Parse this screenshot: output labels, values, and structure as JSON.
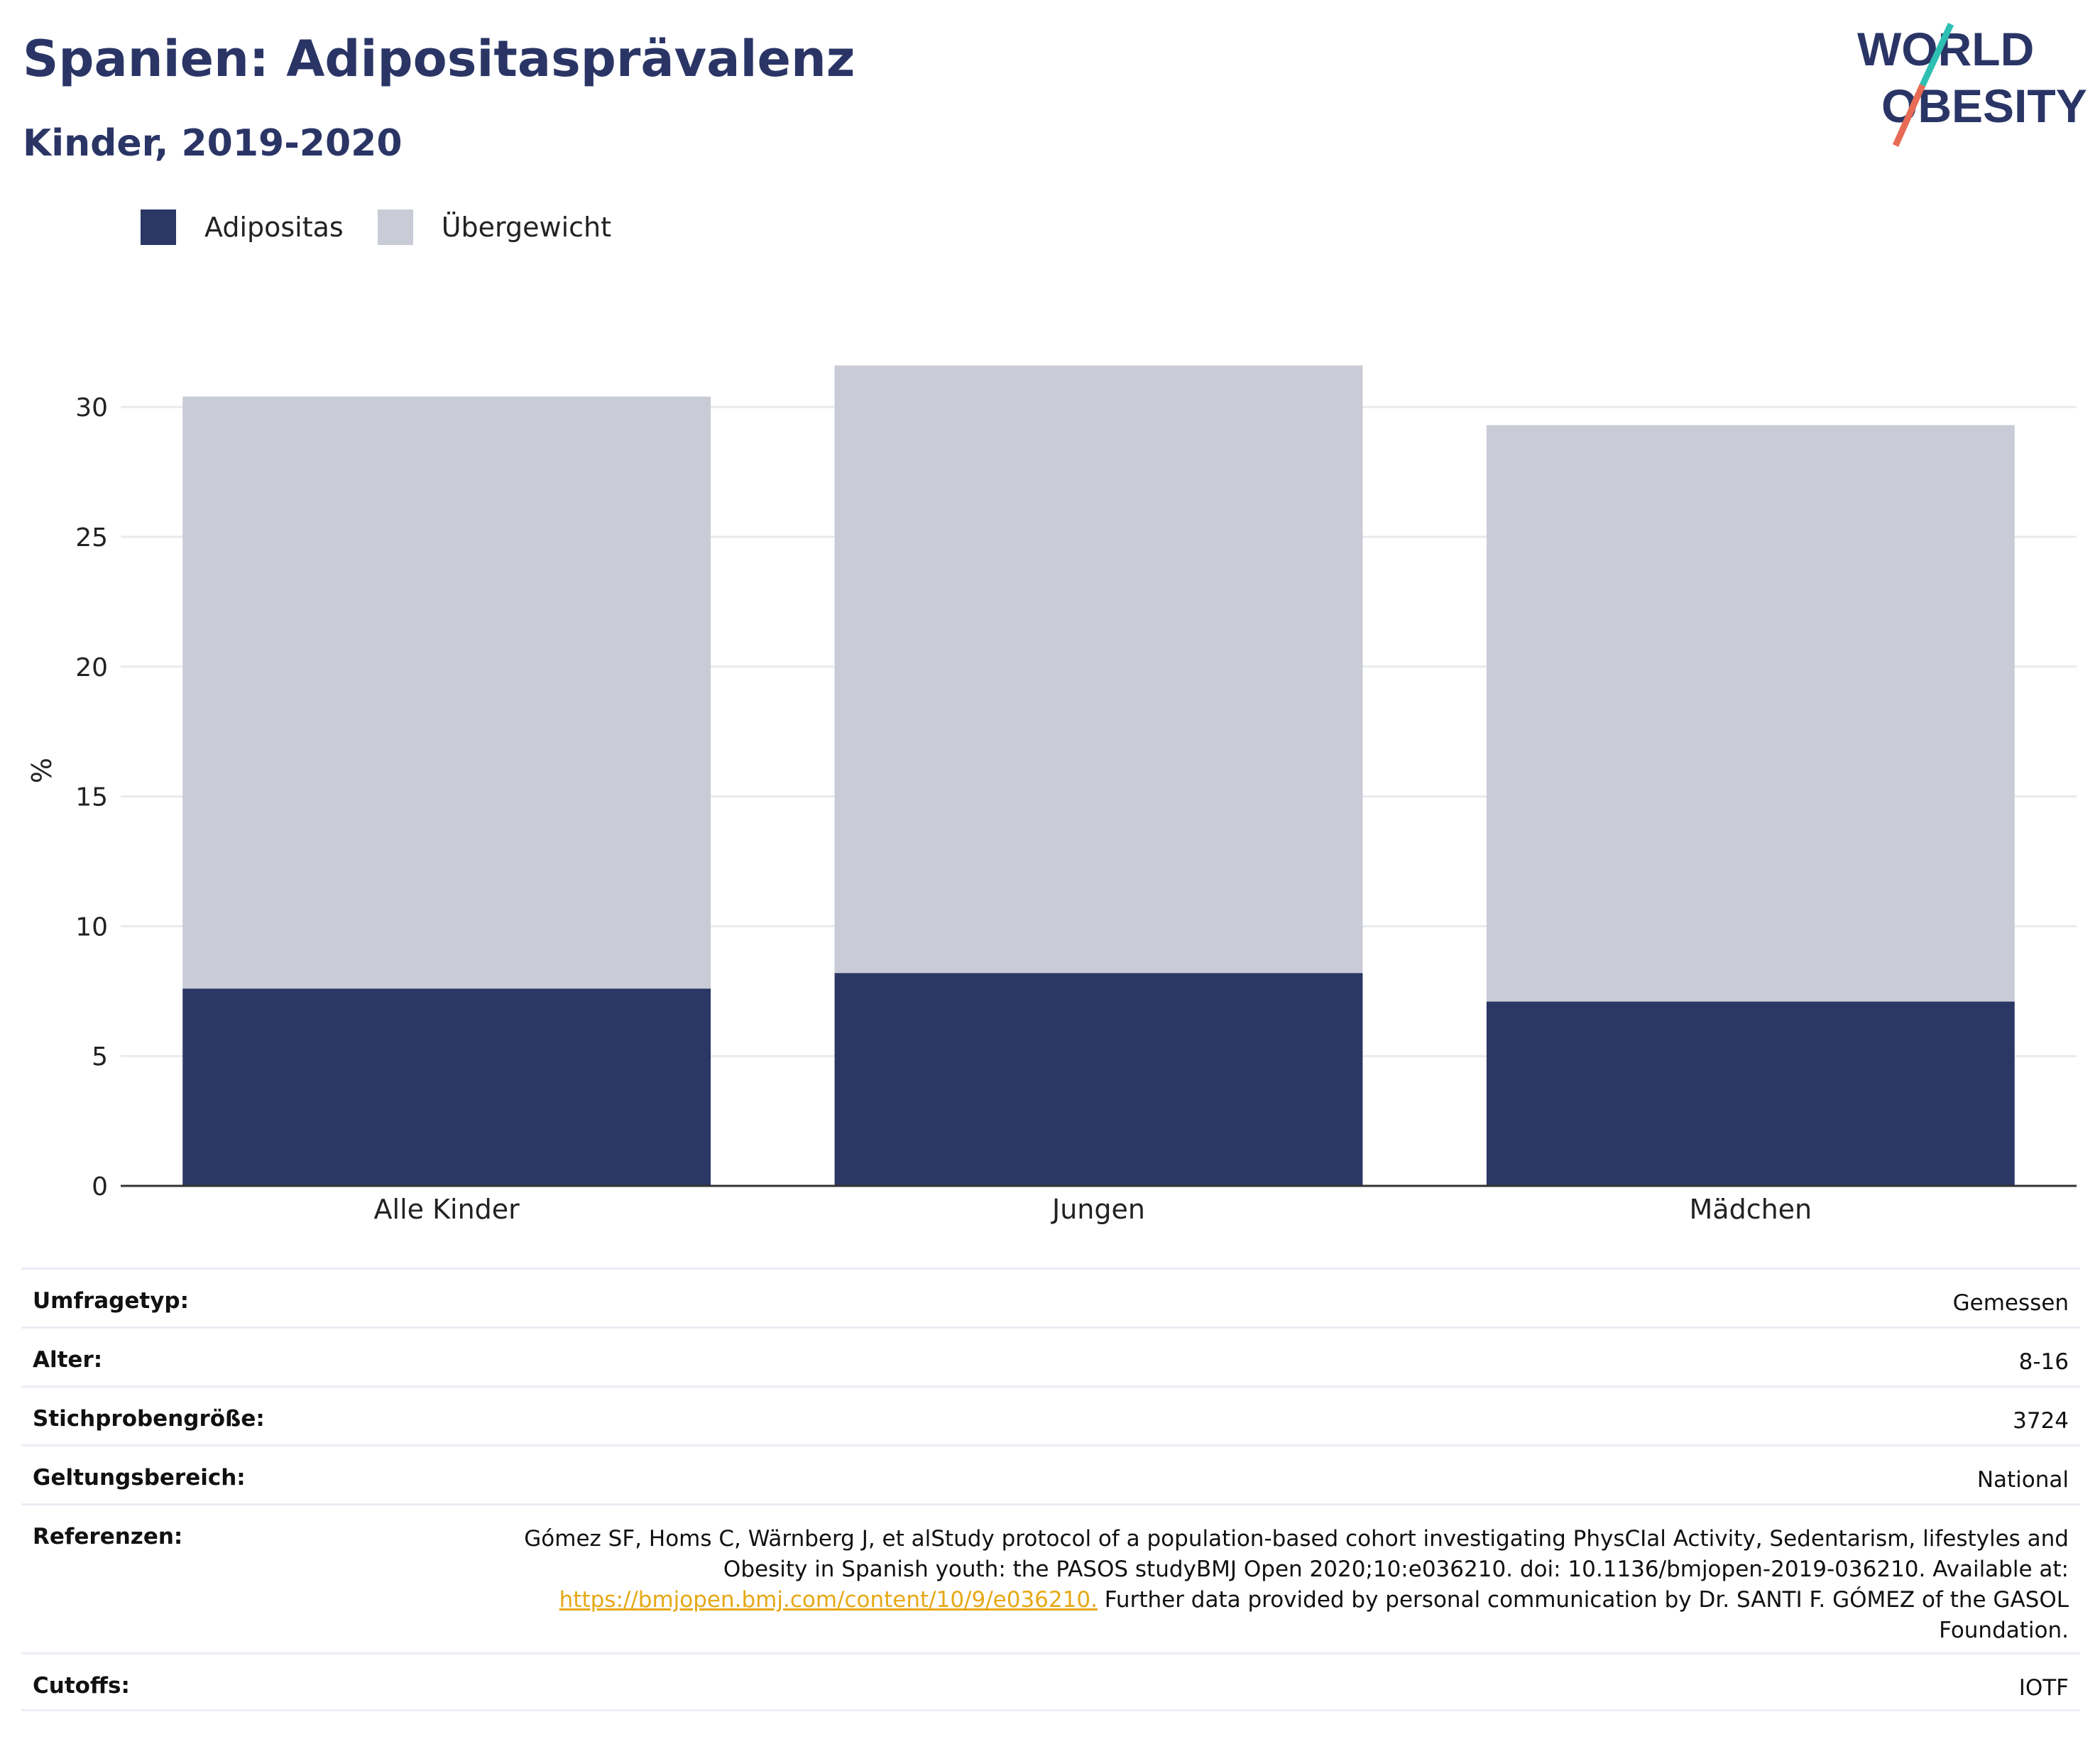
{
  "header": {
    "title": "Spanien: Adipositasprävalenz",
    "subtitle": "Kinder, 2019-2020"
  },
  "logo": {
    "line1": "WORLD",
    "line2": "OBESITY"
  },
  "colors": {
    "adipositas": "#2b3764",
    "uebergewicht": "#c9cbd7",
    "title": "#2a3566",
    "link": "#e6a817",
    "logo_teal": "#2ebfb3",
    "logo_coral": "#e86b56"
  },
  "legend": [
    {
      "label": "Adipositas",
      "color": "#2b3764"
    },
    {
      "label": "Übergewicht",
      "color": "#c9cbd7"
    }
  ],
  "chart_data": {
    "type": "bar",
    "stacked": true,
    "categories": [
      "Alle Kinder",
      "Jungen",
      "Mädchen"
    ],
    "series": [
      {
        "name": "Adipositas",
        "values": [
          7.6,
          8.2,
          7.1
        ]
      },
      {
        "name": "Übergewicht",
        "values": [
          22.8,
          23.4,
          22.2
        ]
      }
    ],
    "ylabel": "%",
    "yticks": [
      "0",
      "5",
      "10",
      "15",
      "20",
      "25",
      "30"
    ],
    "ylim": [
      0,
      32
    ],
    "grid": true
  },
  "info": [
    {
      "key": "Umfragetyp:",
      "value": "Gemessen"
    },
    {
      "key": "Alter:",
      "value": "8-16"
    },
    {
      "key": "Stichprobengröße:",
      "value": "3724"
    },
    {
      "key": "Geltungsbereich:",
      "value": "National"
    },
    {
      "key": "Referenzen:",
      "value": "Gómez SF, Homs C, Wärnberg J, et alStudy protocol of a population-based cohort investigating PhysCIal Activity, Sedentarism, lifestyles and Obesity in Spanish youth: the PASOS studyBMJ Open 2020;10:e036210. doi: 10.1136/bmjopen-2019-036210. Available at:",
      "link": "https://bmjopen.bmj.com/content/10/9/e036210.",
      "after_link": " Further data provided by personal communication by Dr. SANTI F. GÓMEZ of the GASOL Foundation."
    },
    {
      "key": "Cutoffs:",
      "value": "IOTF"
    }
  ]
}
